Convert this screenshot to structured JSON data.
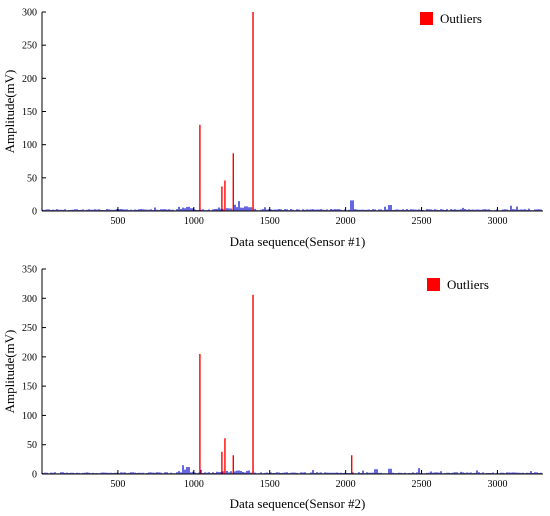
{
  "colors": {
    "signal": "#0000cc",
    "outlier": "#ff0000",
    "axis": "#000000"
  },
  "chart_data": [
    {
      "type": "line",
      "xlabel": "Data sequence(Sensor #1)",
      "ylabel": "Amplitude(mV)",
      "xlim": [
        0,
        3300
      ],
      "ylim": [
        0,
        300
      ],
      "xticks": [
        500,
        1000,
        1500,
        2000,
        2500,
        3000
      ],
      "yticks": [
        0,
        50,
        100,
        150,
        200,
        250,
        300
      ],
      "legend": {
        "label": "Outliers",
        "placement": "top-right"
      },
      "series": [
        {
          "name": "Outliers",
          "kind": "outlier",
          "x": [
            1040,
            1185,
            1205,
            1260,
            1390
          ],
          "y": [
            130,
            37,
            46,
            87,
            300
          ]
        }
      ],
      "noise": {
        "baseline_max": 3,
        "bumps": [
          {
            "x": 1350,
            "y": 7
          },
          {
            "x": 1300,
            "y": 15
          },
          {
            "x": 2040,
            "y": 16
          },
          {
            "x": 2290,
            "y": 9
          },
          {
            "x": 3090,
            "y": 8
          }
        ]
      }
    },
    {
      "type": "line",
      "xlabel": "Data sequence(Sensor #2)",
      "ylabel": "Amplitude(mV)",
      "xlim": [
        0,
        3300
      ],
      "ylim": [
        0,
        350
      ],
      "xticks": [
        500,
        1000,
        1500,
        2000,
        2500,
        3000
      ],
      "yticks": [
        0,
        50,
        100,
        150,
        200,
        250,
        300,
        350
      ],
      "legend": {
        "label": "Outliers",
        "placement": "top-right"
      },
      "series": [
        {
          "name": "Outliers",
          "kind": "outlier",
          "x": [
            1040,
            1185,
            1205,
            1260,
            1390,
            2040
          ],
          "y": [
            205,
            38,
            61,
            32,
            306,
            32
          ]
        }
      ],
      "noise": {
        "baseline_max": 3,
        "bumps": [
          {
            "x": 930,
            "y": 15
          },
          {
            "x": 960,
            "y": 12
          },
          {
            "x": 2200,
            "y": 8
          },
          {
            "x": 2290,
            "y": 9
          },
          {
            "x": 2480,
            "y": 10
          }
        ]
      }
    }
  ]
}
